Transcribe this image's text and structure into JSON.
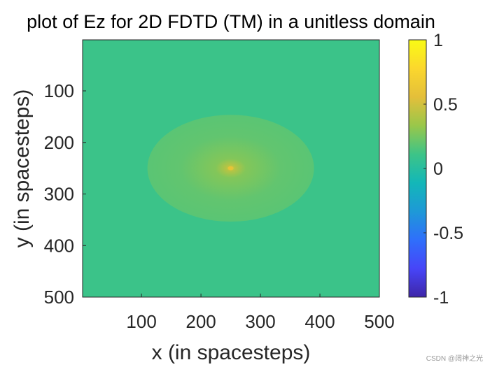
{
  "chart_data": {
    "type": "heatmap",
    "title": "plot of Ez for 2D FDTD (TM) in a unitless domain",
    "xlabel": "x (in spacesteps)",
    "ylabel": "y (in spacesteps)",
    "xlim": [
      1,
      500
    ],
    "ylim": [
      1,
      500
    ],
    "y_reversed": true,
    "xticks": [
      100,
      200,
      300,
      400,
      500
    ],
    "yticks": [
      100,
      200,
      300,
      400,
      500
    ],
    "colormap": "parula",
    "clim": [
      -1,
      1
    ],
    "colorbar_ticks": [
      1,
      0.5,
      0,
      -0.5,
      -1
    ],
    "colorbar_tick_labels": [
      "1",
      "0.5",
      "0",
      "-0.5",
      "-1"
    ],
    "field": {
      "background_value": 0.1,
      "source_center": [
        250,
        250
      ],
      "source_peak_value": 0.6,
      "ring_radius": 140,
      "ring_inner_value": 0.2
    }
  },
  "colors": {
    "parula": [
      "#3e26a8",
      "#4745f8",
      "#2f6ffb",
      "#1e99d7",
      "#13b7b8",
      "#3dc487",
      "#99c74a",
      "#e4bf3a",
      "#fbd72d",
      "#f9fb15"
    ]
  },
  "watermark": "CSDN @阔神之光"
}
